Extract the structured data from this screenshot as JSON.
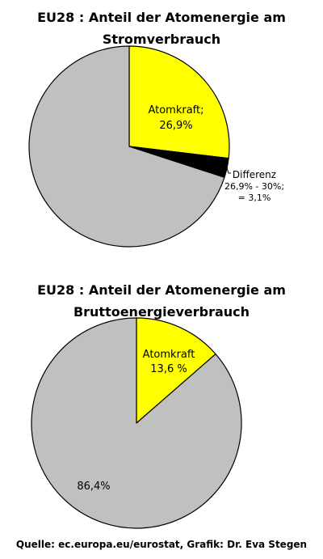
{
  "chart_data": [
    {
      "type": "pie",
      "title_line1": "EU28 : Anteil der Atomenergie am",
      "title_line2": "Stromverbrauch",
      "slices": [
        {
          "label_lines": [
            "Atomkraft;",
            "26,9%"
          ],
          "value": 26.9,
          "color": "#ffff00"
        },
        {
          "label_lines": [
            "Differenz",
            "26,9% - 30%;",
            "= 3,1%"
          ],
          "value": 3.1,
          "color": "#000000"
        },
        {
          "label_lines": [],
          "value": 70.0,
          "color": "#c0c0c0"
        }
      ]
    },
    {
      "type": "pie",
      "title_line1": "EU28 : Anteil der Atomenergie am",
      "title_line2": "Bruttoenergieverbrauch",
      "slices": [
        {
          "label_lines": [
            "Atomkraft",
            "13,6 %"
          ],
          "value": 13.6,
          "color": "#ffff00"
        },
        {
          "label_lines": [
            "86,4%"
          ],
          "value": 86.4,
          "color": "#c0c0c0"
        }
      ]
    }
  ],
  "source": "Quelle: ec.europa.eu/eurostat, Grafik: Dr. Eva Stegen"
}
